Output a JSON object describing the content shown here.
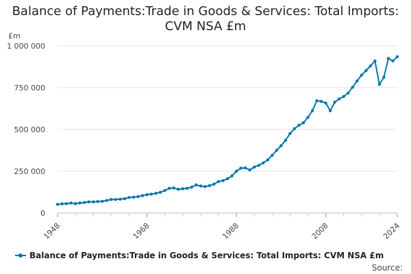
{
  "chart_data": {
    "type": "line",
    "title": "Balance of Payments:Trade in Goods & Services: Total Imports: CVM NSA £m",
    "ylabel": "£m",
    "xlabel": "",
    "ylim": [
      0,
      1000000
    ],
    "xlim": [
      1948,
      2024
    ],
    "yticks": [
      0,
      250000,
      500000,
      750000,
      1000000
    ],
    "ytick_labels": [
      "0",
      "250 000",
      "500 000",
      "750 000",
      "1 000 000"
    ],
    "xticks": [
      1948,
      1968,
      1988,
      2008,
      2024
    ],
    "xtick_labels": [
      "1948",
      "1968",
      "1988",
      "2008",
      "2024"
    ],
    "grid": true,
    "legend": "bottom",
    "color": "#0075b0",
    "series": [
      {
        "name": "Balance of Payments:Trade in Goods & Services: Total Imports: CVM NSA £m",
        "x": [
          1948,
          1949,
          1950,
          1951,
          1952,
          1953,
          1954,
          1955,
          1956,
          1957,
          1958,
          1959,
          1960,
          1961,
          1962,
          1963,
          1964,
          1965,
          1966,
          1967,
          1968,
          1969,
          1970,
          1971,
          1972,
          1973,
          1974,
          1975,
          1976,
          1977,
          1978,
          1979,
          1980,
          1981,
          1982,
          1983,
          1984,
          1985,
          1986,
          1987,
          1988,
          1989,
          1990,
          1991,
          1992,
          1993,
          1994,
          1995,
          1996,
          1997,
          1998,
          1999,
          2000,
          2001,
          2002,
          2003,
          2004,
          2005,
          2006,
          2007,
          2008,
          2009,
          2010,
          2011,
          2012,
          2013,
          2014,
          2015,
          2016,
          2017,
          2018,
          2019,
          2020,
          2021,
          2022,
          2023,
          2024
        ],
        "values": [
          52000,
          55000,
          56000,
          60000,
          56000,
          60000,
          63000,
          67000,
          67000,
          69000,
          70000,
          75000,
          81000,
          81000,
          83000,
          86000,
          93000,
          95000,
          98000,
          104000,
          110000,
          113000,
          118000,
          124000,
          135000,
          148000,
          150000,
          142000,
          145000,
          148000,
          155000,
          168000,
          162000,
          158000,
          164000,
          173000,
          188000,
          194000,
          205000,
          222000,
          250000,
          268000,
          270000,
          258000,
          275000,
          285000,
          300000,
          318000,
          345000,
          375000,
          403000,
          435000,
          475000,
          505000,
          525000,
          540000,
          572000,
          612000,
          672000,
          668000,
          658000,
          612000,
          663000,
          683000,
          697000,
          718000,
          753000,
          790000,
          825000,
          852000,
          880000,
          910000,
          770000,
          812000,
          925000,
          910000,
          935000
        ]
      }
    ]
  },
  "legend_label": "Balance of Payments:Trade in Goods & Services: Total Imports: CVM NSA £m",
  "source_label": "Source:"
}
